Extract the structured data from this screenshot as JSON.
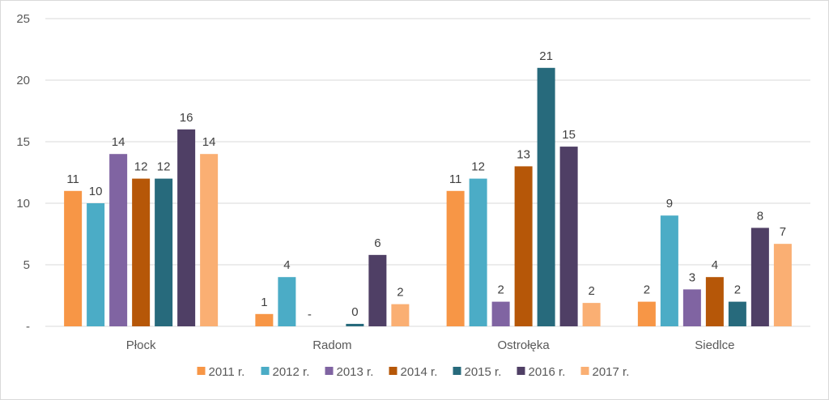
{
  "chart_data": {
    "type": "bar",
    "categories": [
      "Płock",
      "Radom",
      "Ostrołęka",
      "Siedlce"
    ],
    "series": [
      {
        "name": "2011 r.",
        "color": "#F79646",
        "values": [
          11,
          1,
          11,
          2
        ],
        "labels": [
          "11",
          "1",
          "11",
          "2"
        ]
      },
      {
        "name": "2012 r.",
        "color": "#4BACC6",
        "values": [
          10,
          4,
          12,
          9
        ],
        "labels": [
          "10",
          "4",
          "12",
          "9"
        ]
      },
      {
        "name": "2013 r.",
        "color": "#8064A2",
        "values": [
          14,
          0,
          2,
          3
        ],
        "labels": [
          "14",
          "-",
          "2",
          "3"
        ]
      },
      {
        "name": "2014 r.",
        "color": "#B65708",
        "values": [
          12,
          0,
          13,
          4
        ],
        "labels": [
          "12",
          "",
          "13",
          "4"
        ]
      },
      {
        "name": "2015 r.",
        "color": "#276A7C",
        "values": [
          12,
          0.2,
          21,
          2
        ],
        "labels": [
          "12",
          "0",
          "21",
          "2"
        ]
      },
      {
        "name": "2016 r.",
        "color": "#4F3F65",
        "values": [
          16,
          5.8,
          14.6,
          8
        ],
        "labels": [
          "16",
          "6",
          "15",
          "8"
        ]
      },
      {
        "name": "2017 r.",
        "color": "#FAAF73",
        "values": [
          14,
          1.8,
          1.9,
          6.7
        ],
        "labels": [
          "14",
          "2",
          "2",
          "7"
        ]
      }
    ],
    "ylim": [
      0,
      25
    ],
    "yticks": [
      0,
      5,
      10,
      15,
      20,
      25
    ],
    "ytick_labels": [
      "-",
      "5",
      "10",
      "15",
      "20",
      "25"
    ],
    "grid": true,
    "legend_position": "bottom",
    "title": "",
    "xlabel": "",
    "ylabel": ""
  }
}
